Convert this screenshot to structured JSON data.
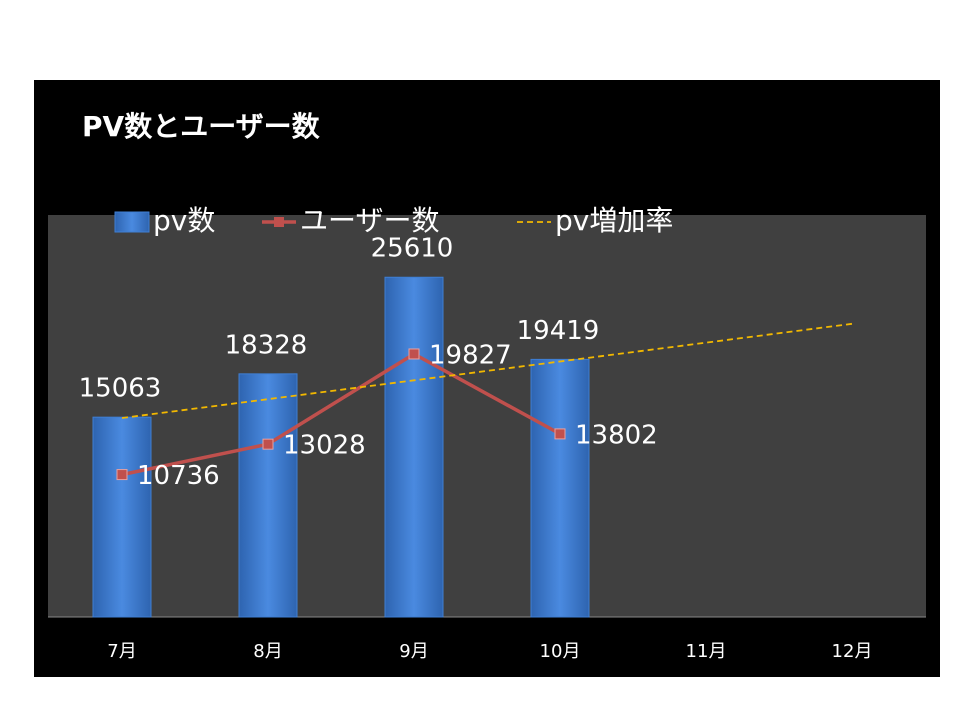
{
  "chart_data": {
    "type": "combo",
    "title": "PV数とユーザー数",
    "categories": [
      "7月",
      "8月",
      "9月",
      "10月",
      "11月",
      "12月"
    ],
    "series": [
      {
        "name": "pv数",
        "type": "bar",
        "color": "#3f7fd4",
        "values": [
          15063,
          18328,
          25610,
          19419,
          null,
          null
        ]
      },
      {
        "name": "ユーザー数",
        "type": "line",
        "color": "#c0504d",
        "values": [
          10736,
          13028,
          19827,
          13802,
          null,
          null
        ]
      },
      {
        "name": "pv増加率",
        "type": "trendline",
        "color": "#f2b800",
        "values": [
          15000,
          16420,
          17840,
          19260,
          20680,
          22100
        ]
      }
    ],
    "ylim": [
      0,
      30000
    ],
    "grid": false,
    "legend": "top"
  }
}
